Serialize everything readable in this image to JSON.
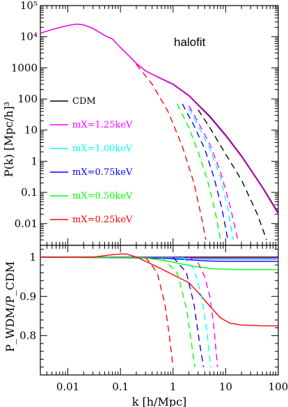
{
  "chart_data": [
    {
      "type": "line",
      "panel": "top",
      "ylabel": "P(k) [Mpc/h]³",
      "xlabel": "",
      "xscale": "log",
      "yscale": "log",
      "xlim": [
        0.003,
        100
      ],
      "ylim": [
        0.002,
        100000
      ],
      "x_ticks": [
        "0.01",
        "0.1",
        "1",
        "10",
        "100"
      ],
      "y_ticks": [
        {
          "label": "0.01",
          "value": 0.01
        },
        {
          "label": "0.1",
          "value": 0.1
        },
        {
          "label": "1",
          "value": 1
        },
        {
          "label": "10",
          "value": 10
        },
        {
          "label": "100",
          "value": 100
        },
        {
          "label": "1000",
          "value": 1000
        },
        {
          "label": "10⁴",
          "value": 10000
        },
        {
          "label": "10⁵",
          "value": 100000
        }
      ],
      "annotation": "halofit",
      "legend": [
        {
          "label": "CDM",
          "color": "#000000"
        },
        {
          "label": "mX=1.25keV",
          "color": "#ff00ff"
        },
        {
          "label": "mX=1.00keV",
          "color": "#00ffff"
        },
        {
          "label": "mX=0.75keV",
          "color": "#0000ff"
        },
        {
          "label": "mX=0.50keV",
          "color": "#00ff00"
        },
        {
          "label": "mX=0.25keV",
          "color": "#ff0000"
        }
      ],
      "series": [
        {
          "name": "CDM",
          "color": "#000000",
          "style": "solid",
          "x": [
            0.003,
            0.005,
            0.01,
            0.015,
            0.02,
            0.03,
            0.05,
            0.07,
            0.1,
            0.15,
            0.2,
            0.3,
            0.5,
            1,
            2,
            5,
            10,
            20,
            50,
            100
          ],
          "y": [
            13000,
            17000,
            23000,
            25500,
            24000,
            18500,
            11000,
            8500,
            4500,
            2300,
            1400,
            800,
            520,
            300,
            130,
            28,
            7,
            1.5,
            0.15,
            0.022
          ]
        },
        {
          "name": "mX=1.25keV",
          "color": "#ff00ff",
          "style": "solid",
          "x": [
            0.003,
            0.005,
            0.01,
            0.015,
            0.02,
            0.03,
            0.05,
            0.07,
            0.1,
            0.15,
            0.2,
            0.3,
            0.5,
            1,
            2,
            5,
            10,
            20,
            50,
            100
          ],
          "y": [
            13000,
            17000,
            23000,
            25500,
            24000,
            18500,
            11000,
            8500,
            4500,
            2300,
            1400,
            800,
            510,
            290,
            125,
            26,
            6.5,
            1.4,
            0.14,
            0.02
          ]
        },
        {
          "name": "CDM linear",
          "color": "#000000",
          "style": "dashed",
          "x": [
            3,
            5,
            10,
            20,
            40,
            60
          ],
          "y": [
            45,
            12,
            1.7,
            0.25,
            0.02,
            0.003
          ]
        },
        {
          "name": "mX=1.25keV linear",
          "color": "#ff00ff",
          "style": "dashed",
          "x": [
            2,
            3,
            5,
            8,
            12,
            17
          ],
          "y": [
            60,
            18,
            3.5,
            0.45,
            0.04,
            0.003
          ]
        },
        {
          "name": "mX=1.00keV linear",
          "color": "#00ffff",
          "style": "dashed",
          "x": [
            2,
            3,
            5,
            8,
            11,
            14
          ],
          "y": [
            50,
            14,
            2.5,
            0.3,
            0.03,
            0.003
          ]
        },
        {
          "name": "mX=0.75keV linear",
          "color": "#0000ff",
          "style": "dashed",
          "x": [
            1.5,
            2.5,
            4,
            6,
            8.5,
            11
          ],
          "y": [
            70,
            14,
            2.5,
            0.3,
            0.03,
            0.003
          ]
        },
        {
          "name": "mX=0.50keV linear",
          "color": "#00ff00",
          "style": "dashed",
          "x": [
            1.2,
            2,
            3,
            4.5,
            6.3,
            8
          ],
          "y": [
            70,
            12,
            2,
            0.25,
            0.025,
            0.003
          ]
        },
        {
          "name": "mX=0.25keV linear",
          "color": "#ff0000",
          "style": "dashed",
          "x": [
            0.2,
            0.4,
            0.8,
            1.5,
            2.5,
            3.5,
            4.2
          ],
          "y": [
            1300,
            300,
            40,
            3,
            0.2,
            0.015,
            0.003
          ]
        }
      ]
    },
    {
      "type": "line",
      "panel": "bottom",
      "ylabel": "P_WDM/P_CDM",
      "xlabel": "k [h/Mpc]",
      "xscale": "log",
      "xlim": [
        0.003,
        100
      ],
      "ylim": [
        0.7,
        1.03
      ],
      "x_ticks": [
        "0.01",
        "0.1",
        "1",
        "10",
        "100"
      ],
      "y_ticks": [
        {
          "label": "1",
          "value": 1.0
        },
        {
          "label": "0.9",
          "value": 0.9
        },
        {
          "label": "0.8",
          "value": 0.8
        }
      ],
      "series": [
        {
          "name": "CDM",
          "color": "#000000",
          "style": "solid",
          "x": [
            0.003,
            100
          ],
          "y": [
            1.0,
            1.0
          ]
        },
        {
          "name": "mX=1.25keV",
          "color": "#ff00ff",
          "style": "solid",
          "x": [
            0.003,
            1,
            3,
            10,
            100
          ],
          "y": [
            1.0,
            0.999,
            0.997,
            0.997,
            0.997
          ]
        },
        {
          "name": "mX=1.00keV",
          "color": "#00ffff",
          "style": "solid",
          "x": [
            0.003,
            1,
            3,
            10,
            100
          ],
          "y": [
            1.0,
            0.998,
            0.995,
            0.994,
            0.994
          ]
        },
        {
          "name": "mX=0.75keV",
          "color": "#0000ff",
          "style": "solid",
          "x": [
            0.003,
            0.7,
            2,
            5,
            10,
            100
          ],
          "y": [
            1.0,
            0.997,
            0.993,
            0.99,
            0.989,
            0.989
          ]
        },
        {
          "name": "mX=0.50keV",
          "color": "#00ff00",
          "style": "solid",
          "x": [
            0.003,
            0.3,
            0.8,
            1.5,
            3,
            6,
            20,
            100
          ],
          "y": [
            1.0,
            0.998,
            0.99,
            0.982,
            0.975,
            0.97,
            0.968,
            0.968
          ]
        },
        {
          "name": "mX=0.25keV",
          "color": "#ff0000",
          "style": "solid",
          "x": [
            0.003,
            0.03,
            0.06,
            0.1,
            0.13,
            0.2,
            0.35,
            0.6,
            1,
            2,
            3,
            5,
            8,
            12,
            20,
            50,
            100
          ],
          "y": [
            1.0,
            1.0,
            1.005,
            1.008,
            1.008,
            1.0,
            0.985,
            0.97,
            0.955,
            0.935,
            0.91,
            0.875,
            0.845,
            0.832,
            0.827,
            0.825,
            0.825
          ]
        },
        {
          "name": "mX=1.25keV linear",
          "color": "#ff00ff",
          "style": "dashed",
          "x": [
            2,
            3,
            4,
            5,
            6,
            7
          ],
          "y": [
            1.0,
            0.985,
            0.95,
            0.9,
            0.82,
            0.72
          ]
        },
        {
          "name": "mX=1.00keV linear",
          "color": "#00ffff",
          "style": "dashed",
          "x": [
            1.5,
            2.5,
            3.5,
            4.5,
            5.2
          ],
          "y": [
            1.0,
            0.97,
            0.9,
            0.8,
            0.72
          ]
        },
        {
          "name": "mX=0.75keV linear",
          "color": "#0000ff",
          "style": "dashed",
          "x": [
            1,
            1.8,
            2.5,
            3.2,
            3.8
          ],
          "y": [
            1.0,
            0.96,
            0.88,
            0.78,
            0.72
          ]
        },
        {
          "name": "mX=0.50keV linear",
          "color": "#00ff00",
          "style": "dashed",
          "x": [
            0.6,
            1.2,
            1.8,
            2.3,
            2.6
          ],
          "y": [
            1.0,
            0.96,
            0.87,
            0.77,
            0.72
          ]
        },
        {
          "name": "mX=0.25keV linear",
          "color": "#ff0000",
          "style": "dashed",
          "x": [
            0.3,
            0.5,
            0.7,
            0.85,
            1.0
          ],
          "y": [
            1.0,
            0.96,
            0.88,
            0.8,
            0.72
          ]
        }
      ]
    }
  ]
}
